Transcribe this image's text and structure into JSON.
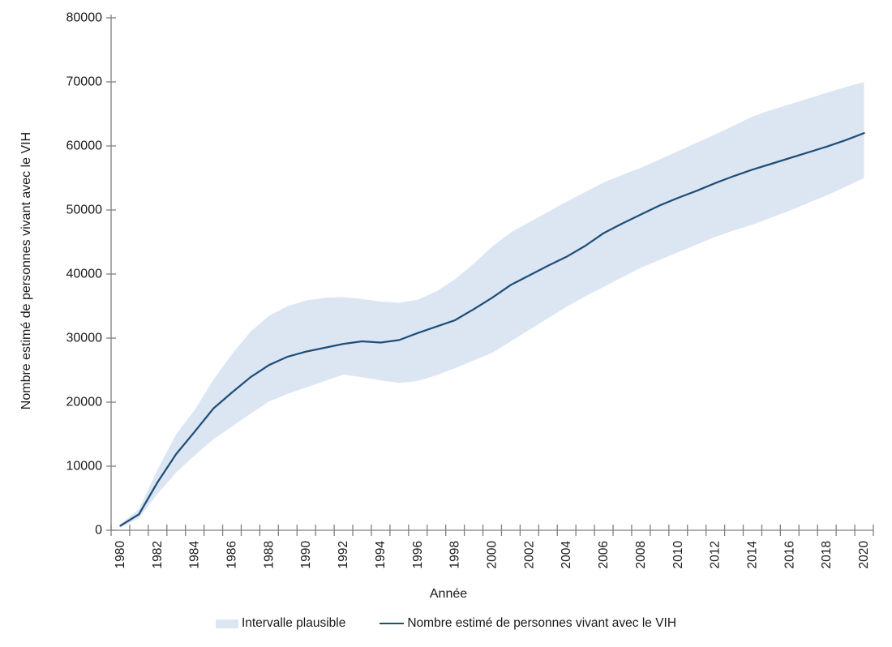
{
  "chart_data": {
    "type": "line",
    "title": "",
    "xlabel": "Année",
    "ylabel": "Nombre estimé de personnes vivant avec le VIH",
    "ylim": [
      0,
      80000
    ],
    "ytick_step": 10000,
    "grid": false,
    "legend_position": "bottom",
    "x_label_interval": 2,
    "years": [
      1980,
      1981,
      1982,
      1983,
      1984,
      1985,
      1986,
      1987,
      1988,
      1989,
      1990,
      1991,
      1992,
      1993,
      1994,
      1995,
      1996,
      1997,
      1998,
      1999,
      2000,
      2001,
      2002,
      2003,
      2004,
      2005,
      2006,
      2007,
      2008,
      2009,
      2010,
      2011,
      2012,
      2013,
      2014,
      2015,
      2016,
      2017,
      2018,
      2019,
      2020
    ],
    "line": {
      "name": "Nombre estimé de personnes vivant avec le VIH",
      "color": "#1f4e79",
      "values": [
        700,
        2500,
        7500,
        11900,
        15400,
        19000,
        21500,
        23900,
        25800,
        27100,
        27900,
        28500,
        29100,
        29500,
        29300,
        29700,
        30800,
        31800,
        32800,
        34500,
        36300,
        38300,
        39800,
        41300,
        42700,
        44400,
        46400,
        47900,
        49300,
        50700,
        51900,
        53000,
        54200,
        55300,
        56300,
        57200,
        58100,
        59000,
        59900,
        60900,
        62000
      ]
    },
    "band": {
      "name": "Intervalle plausible",
      "color": "#dce6f2",
      "low": [
        400,
        1900,
        5700,
        9000,
        11700,
        14200,
        16200,
        18200,
        20100,
        21300,
        22300,
        23300,
        24300,
        23900,
        23400,
        23000,
        23300,
        24200,
        25300,
        26500,
        27700,
        29500,
        31300,
        33100,
        34900,
        36500,
        38000,
        39500,
        41000,
        42200,
        43400,
        44600,
        45800,
        46800,
        47700,
        48800,
        49900,
        51100,
        52300,
        53600,
        55000
      ],
      "high": [
        1000,
        3300,
        9500,
        15000,
        18800,
        23500,
        27500,
        31000,
        33500,
        35000,
        35900,
        36300,
        36400,
        36100,
        35700,
        35500,
        36000,
        37300,
        39200,
        41600,
        44300,
        46500,
        48100,
        49700,
        51300,
        52800,
        54300,
        55500,
        56600,
        57900,
        59200,
        60500,
        61800,
        63200,
        64600,
        65600,
        66500,
        67400,
        68300,
        69200,
        70000
      ]
    }
  },
  "colors": {
    "axis": "#808080",
    "tick_text": "#1a1a1a",
    "band": "#dce6f2",
    "line": "#1f4e79"
  }
}
